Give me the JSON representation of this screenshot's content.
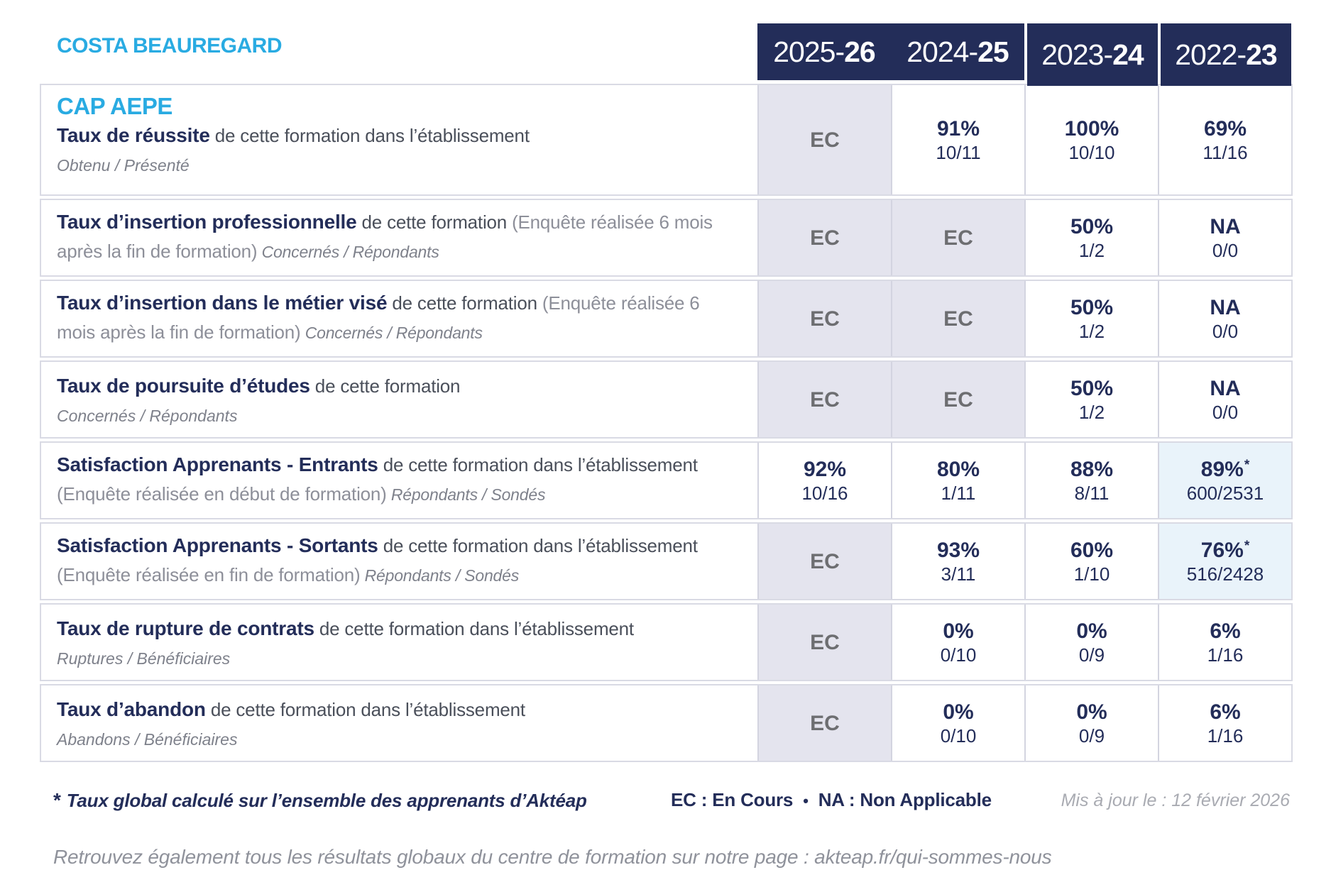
{
  "site_title": "COSTA BEAUREGARD",
  "colors": {
    "accent_blue": "#29abe2",
    "navy": "#232d59",
    "ec_gray": "#6d6e71",
    "ec_cell_bg": "#e4e4ee",
    "highlight_cell_bg": "#e9f3fa"
  },
  "table": {
    "columns": [
      {
        "pre": "2025-",
        "bold": "26"
      },
      {
        "pre": "2024-",
        "bold": "25"
      },
      {
        "pre": "2023-",
        "bold": "24"
      },
      {
        "pre": "2022-",
        "bold": "23"
      }
    ],
    "rows": [
      {
        "program": "CAP AEPE",
        "segments": [
          {
            "style": "title",
            "text": "Taux de réussite"
          },
          {
            "style": "plain",
            "text": " de cette formation dans l’établissement"
          }
        ],
        "sub": "Obtenu / Présenté",
        "cells": [
          {
            "v": "EC"
          },
          {
            "v": "91%",
            "f": "10/11"
          },
          {
            "v": "100%",
            "f": "10/10"
          },
          {
            "v": "69%",
            "f": "11/16"
          }
        ]
      },
      {
        "segments": [
          {
            "style": "title",
            "text": "Taux d’insertion professionnelle"
          },
          {
            "style": "plain",
            "text": " de cette formation "
          },
          {
            "style": "light",
            "text": "(Enquête réalisée 6 mois après la fin de formation)"
          },
          {
            "style": "italic",
            "text": " Concernés / Répondants"
          }
        ],
        "cells": [
          {
            "v": "EC"
          },
          {
            "v": "EC"
          },
          {
            "v": "50%",
            "f": "1/2"
          },
          {
            "v": "NA",
            "f": "0/0"
          }
        ]
      },
      {
        "segments": [
          {
            "style": "title",
            "text": "Taux d’insertion dans le métier visé"
          },
          {
            "style": "plain",
            "text": " de cette formation "
          },
          {
            "style": "light",
            "text": "(Enquête réalisée 6 mois après la fin de formation)"
          },
          {
            "style": "italic",
            "text": " Concernés / Répondants"
          }
        ],
        "cells": [
          {
            "v": "EC"
          },
          {
            "v": "EC"
          },
          {
            "v": "50%",
            "f": "1/2"
          },
          {
            "v": "NA",
            "f": "0/0"
          }
        ]
      },
      {
        "segments": [
          {
            "style": "title",
            "text": "Taux de poursuite d’études"
          },
          {
            "style": "plain",
            "text": " de cette formation"
          }
        ],
        "sub": "Concernés / Répondants",
        "cells": [
          {
            "v": "EC"
          },
          {
            "v": "EC"
          },
          {
            "v": "50%",
            "f": "1/2"
          },
          {
            "v": "NA",
            "f": "0/0"
          }
        ]
      },
      {
        "segments": [
          {
            "style": "title",
            "text": "Satisfaction Apprenants - Entrants"
          },
          {
            "style": "plain",
            "text": " de cette formation dans l’établissement "
          },
          {
            "style": "light",
            "text": "(Enquête réalisée en début de formation)"
          },
          {
            "style": "italic",
            "text": " Répondants / Sondés"
          }
        ],
        "cells": [
          {
            "v": "92%",
            "f": "10/16"
          },
          {
            "v": "80%",
            "f": "1/11"
          },
          {
            "v": "88%",
            "f": "8/11"
          },
          {
            "v": "89%",
            "f": "600/2531",
            "star": "*",
            "hl": true
          }
        ]
      },
      {
        "segments": [
          {
            "style": "title",
            "text": "Satisfaction Apprenants - Sortants"
          },
          {
            "style": "plain",
            "text": " de cette formation dans l’établissement "
          },
          {
            "style": "light",
            "text": "(Enquête réalisée en fin de formation)"
          },
          {
            "style": "italic",
            "text": " Répondants / Sondés"
          }
        ],
        "cells": [
          {
            "v": "EC"
          },
          {
            "v": "93%",
            "f": "3/11"
          },
          {
            "v": "60%",
            "f": "1/10"
          },
          {
            "v": "76%",
            "f": "516/2428",
            "star": "*",
            "hl": true
          }
        ]
      },
      {
        "segments": [
          {
            "style": "title",
            "text": "Taux de rupture de contrats"
          },
          {
            "style": "plain",
            "text": " de cette formation dans l’établissement"
          }
        ],
        "sub": "Ruptures / Bénéficiaires",
        "cells": [
          {
            "v": "EC"
          },
          {
            "v": "0%",
            "f": "0/10"
          },
          {
            "v": "0%",
            "f": "0/9"
          },
          {
            "v": "6%",
            "f": "1/16"
          }
        ]
      },
      {
        "segments": [
          {
            "style": "title",
            "text": "Taux d’abandon"
          },
          {
            "style": "plain",
            "text": " de cette formation dans l’établissement"
          }
        ],
        "sub": "Abandons / Bénéficiaires",
        "cells": [
          {
            "v": "EC"
          },
          {
            "v": "0%",
            "f": "0/10"
          },
          {
            "v": "0%",
            "f": "0/9"
          },
          {
            "v": "6%",
            "f": "1/16"
          }
        ]
      }
    ]
  },
  "footnotes": {
    "star_symbol": "*",
    "star_text": "Taux global calculé sur l’ensemble des apprenants d’Aktéap",
    "legend_ec": "EC : En Cours",
    "legend_sep": "•",
    "legend_na": "NA : Non Applicable",
    "updated": "Mis à jour le : 12 février 2026",
    "bottom": "Retrouvez également tous les résultats globaux du centre de formation sur notre page : akteap.fr/qui-sommes-nous"
  }
}
